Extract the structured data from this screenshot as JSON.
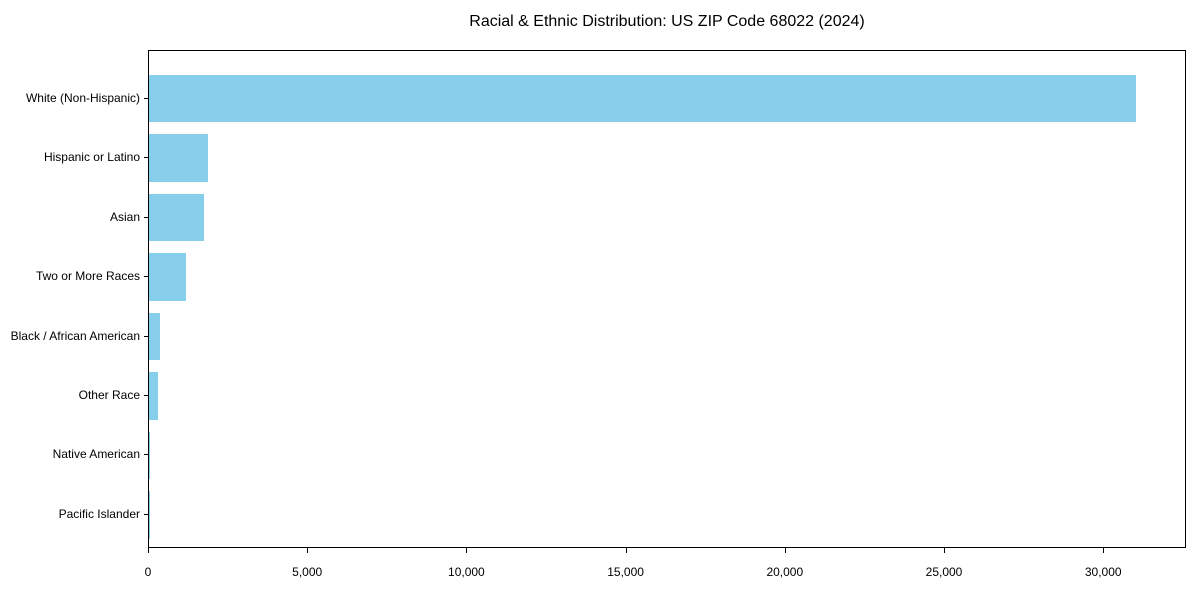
{
  "chart_data": {
    "type": "bar",
    "orientation": "horizontal",
    "title": "Racial & Ethnic Distribution: US ZIP Code 68022 (2024)",
    "categories": [
      "White (Non-Hispanic)",
      "Hispanic or Latino",
      "Asian",
      "Two or More Races",
      "Black / African American",
      "Other Race",
      "Native American",
      "Pacific Islander"
    ],
    "values": [
      31000,
      1850,
      1740,
      1160,
      350,
      270,
      30,
      10
    ],
    "xlabel": "",
    "ylabel": "",
    "xlim": [
      0,
      32600
    ],
    "xticks": [
      0,
      5000,
      10000,
      15000,
      20000,
      25000,
      30000
    ],
    "xtick_labels": [
      "0",
      "5,000",
      "10,000",
      "15,000",
      "20,000",
      "25,000",
      "30,000"
    ],
    "grid": false,
    "legend": null,
    "colors": {
      "bar": "#87CEEB",
      "text": "#000000",
      "spine": "#000000",
      "background": "#ffffff"
    }
  }
}
